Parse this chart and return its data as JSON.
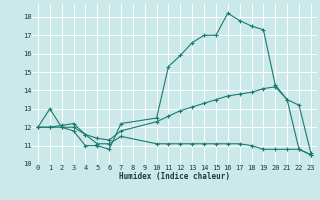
{
  "title": "",
  "xlabel": "Humidex (Indice chaleur)",
  "bg_color": "#cce9e9",
  "grid_color": "#ffffff",
  "line_color": "#1a7a6e",
  "xlim": [
    -0.5,
    23.5
  ],
  "ylim": [
    10,
    18.7
  ],
  "yticks": [
    10,
    11,
    12,
    13,
    14,
    15,
    16,
    17,
    18
  ],
  "xticks": [
    0,
    1,
    2,
    3,
    4,
    5,
    6,
    7,
    8,
    9,
    10,
    11,
    12,
    13,
    14,
    15,
    16,
    17,
    18,
    19,
    20,
    21,
    22,
    23
  ],
  "curve1_x": [
    0,
    1,
    2,
    3,
    4,
    5,
    6,
    7,
    10,
    11,
    12,
    13,
    14,
    15,
    16,
    17,
    18,
    19,
    20,
    21,
    22,
    23
  ],
  "curve1_y": [
    12.0,
    13.0,
    12.0,
    11.8,
    11.0,
    11.0,
    10.8,
    12.2,
    12.5,
    15.3,
    15.9,
    16.6,
    17.0,
    17.0,
    18.2,
    17.8,
    17.5,
    17.3,
    14.3,
    13.5,
    13.2,
    10.6
  ],
  "curve2_x": [
    0,
    1,
    2,
    3,
    4,
    5,
    6,
    7,
    10,
    11,
    12,
    13,
    14,
    15,
    16,
    17,
    18,
    19,
    20,
    21,
    22,
    23
  ],
  "curve2_y": [
    12.0,
    12.0,
    12.0,
    12.0,
    11.6,
    11.1,
    11.1,
    11.5,
    11.1,
    11.1,
    11.1,
    11.1,
    11.1,
    11.1,
    11.1,
    11.1,
    11.0,
    10.8,
    10.8,
    10.8,
    10.8,
    10.5
  ],
  "curve3_x": [
    0,
    1,
    2,
    3,
    4,
    5,
    6,
    7,
    10,
    11,
    12,
    13,
    14,
    15,
    16,
    17,
    18,
    19,
    20,
    21,
    22,
    23
  ],
  "curve3_y": [
    12.0,
    12.0,
    12.1,
    12.2,
    11.6,
    11.4,
    11.3,
    11.8,
    12.3,
    12.6,
    12.9,
    13.1,
    13.3,
    13.5,
    13.7,
    13.8,
    13.9,
    14.1,
    14.2,
    13.5,
    10.8,
    10.5
  ]
}
